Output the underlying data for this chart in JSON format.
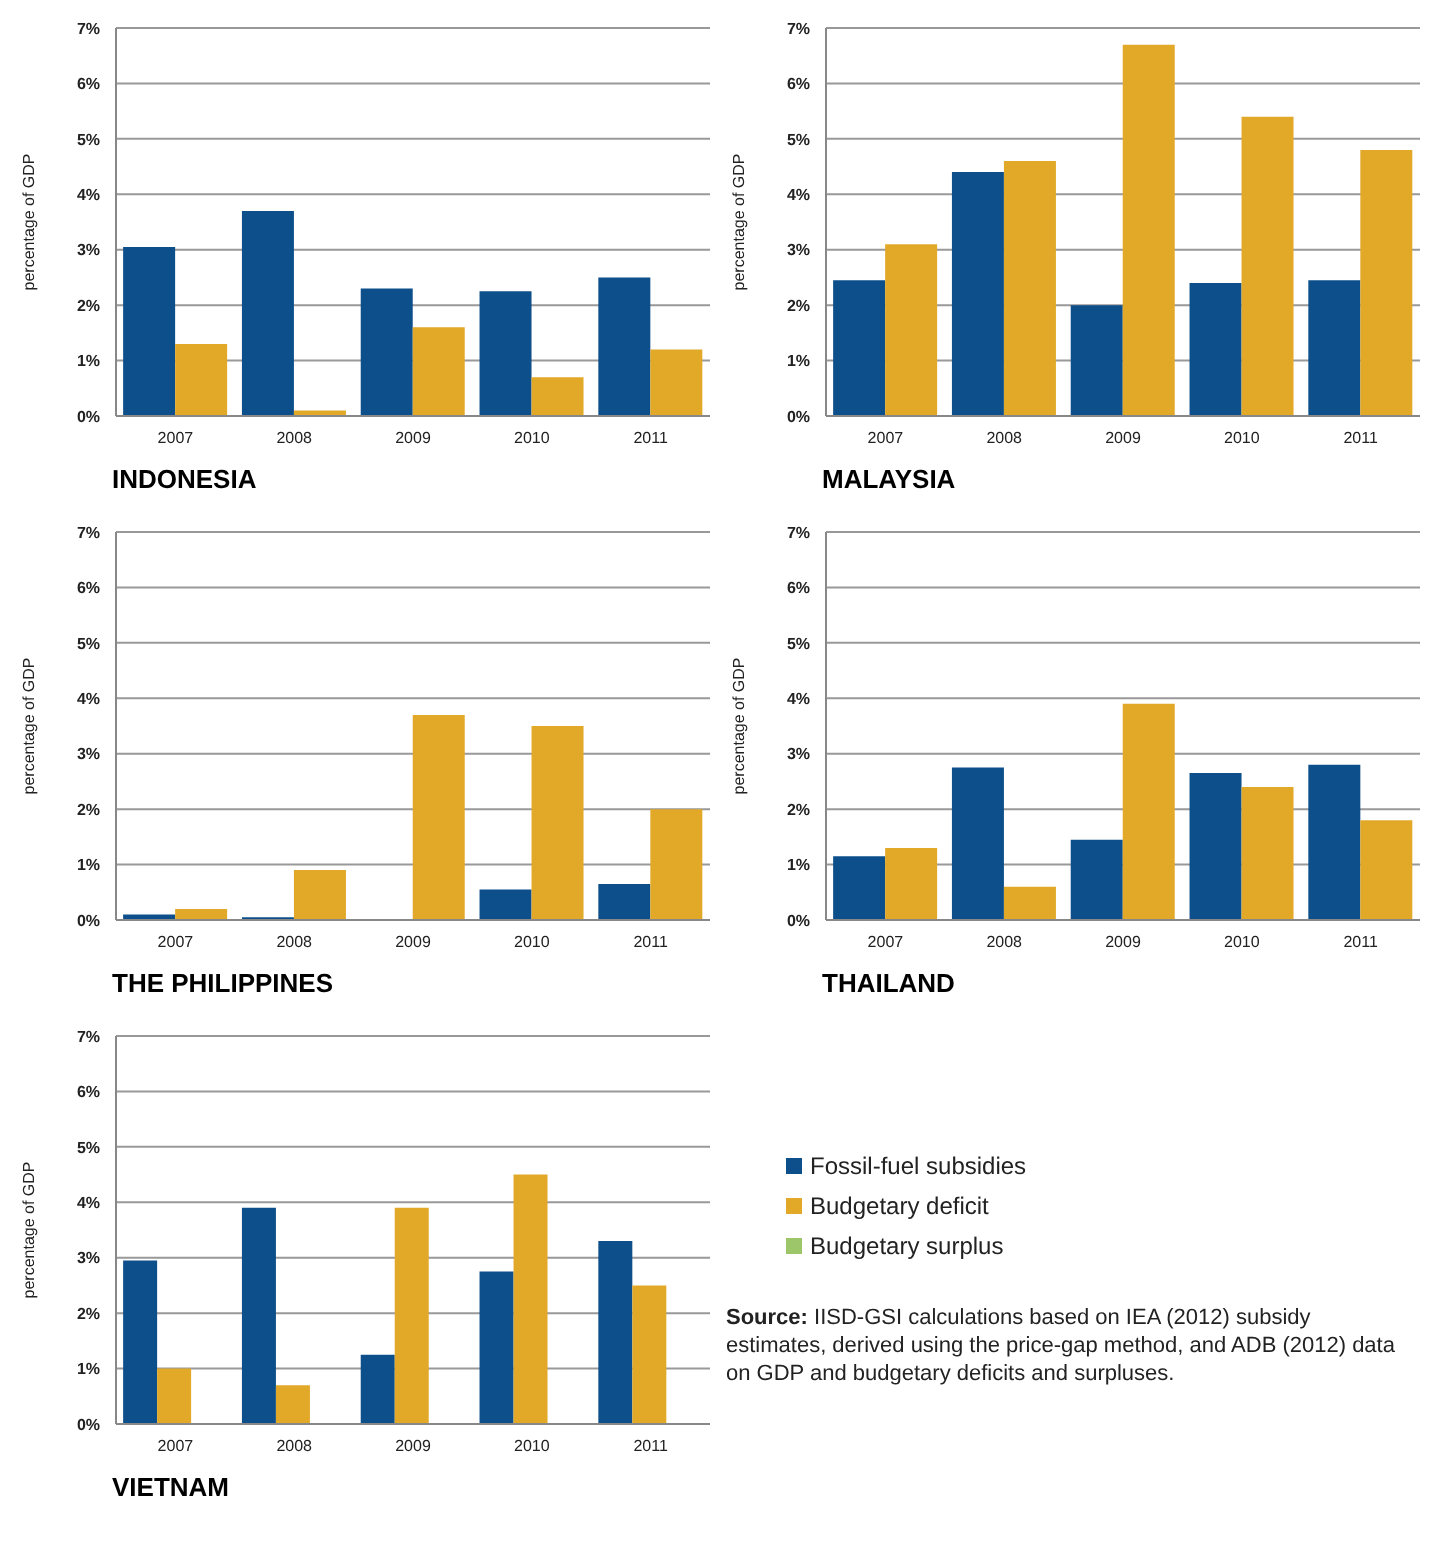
{
  "chart_data": [
    {
      "type": "bar",
      "title": "INDONESIA",
      "ylabel": "percentage of GDP",
      "categories": [
        "2007",
        "2008",
        "2009",
        "2010",
        "2011"
      ],
      "series": [
        {
          "color": "#0d4f8b",
          "values": [
            3.05,
            3.7,
            2.3,
            2.25,
            2.5
          ]
        },
        {
          "color": "#e2a928",
          "values": [
            1.3,
            0.1,
            1.6,
            0.7,
            1.2
          ]
        }
      ],
      "ylim": [
        0,
        7
      ],
      "yticks": [
        {
          "value": 0,
          "label": "0%"
        },
        {
          "value": 1,
          "label": "1%"
        },
        {
          "value": 2,
          "label": "2%"
        },
        {
          "value": 3,
          "label": "3%"
        },
        {
          "value": 4,
          "label": "4%"
        },
        {
          "value": 5,
          "label": "5%"
        },
        {
          "value": 6,
          "label": "6%"
        },
        {
          "value": 7,
          "label": "7%"
        }
      ],
      "grid": "y"
    },
    {
      "type": "bar",
      "title": "MALAYSIA",
      "ylabel": "percentage of GDP",
      "categories": [
        "2007",
        "2008",
        "2009",
        "2010",
        "2011"
      ],
      "series": [
        {
          "color": "#0d4f8b",
          "values": [
            2.45,
            4.4,
            2.0,
            2.4,
            2.45
          ]
        },
        {
          "color": "#e2a928",
          "values": [
            3.1,
            4.6,
            6.7,
            5.4,
            4.8
          ]
        }
      ],
      "ylim": [
        0,
        7
      ],
      "yticks": [
        {
          "value": 0,
          "label": "0%"
        },
        {
          "value": 1,
          "label": "1%"
        },
        {
          "value": 2,
          "label": "2%"
        },
        {
          "value": 3,
          "label": "3%"
        },
        {
          "value": 4,
          "label": "4%"
        },
        {
          "value": 5,
          "label": "5%"
        },
        {
          "value": 6,
          "label": "6%"
        },
        {
          "value": 7,
          "label": "7%"
        }
      ],
      "grid": "y"
    },
    {
      "type": "bar",
      "title": "THE PHILIPPINES",
      "ylabel": "percentage of GDP",
      "categories": [
        "2007",
        "2008",
        "2009",
        "2010",
        "2011"
      ],
      "series": [
        {
          "color": "#0d4f8b",
          "values": [
            0.1,
            0.05,
            0,
            0.55,
            0.65
          ]
        },
        {
          "color": "#e2a928",
          "values": [
            0.2,
            0.9,
            3.7,
            3.5,
            2.0
          ]
        }
      ],
      "ylim": [
        0,
        7
      ],
      "yticks": [
        {
          "value": 0,
          "label": "0%"
        },
        {
          "value": 1,
          "label": "1%"
        },
        {
          "value": 2,
          "label": "2%"
        },
        {
          "value": 3,
          "label": "3%"
        },
        {
          "value": 4,
          "label": "4%"
        },
        {
          "value": 5,
          "label": "5%"
        },
        {
          "value": 6,
          "label": "6%"
        },
        {
          "value": 7,
          "label": "7%"
        }
      ],
      "grid": "y"
    },
    {
      "type": "bar",
      "title": "THAILAND",
      "ylabel": "percentage of GDP",
      "categories": [
        "2007",
        "2008",
        "2009",
        "2010",
        "2011"
      ],
      "series": [
        {
          "color": "#0d4f8b",
          "values": [
            1.15,
            2.75,
            1.45,
            2.65,
            2.8
          ]
        },
        {
          "color": "#e2a928",
          "values": [
            1.3,
            0.6,
            3.9,
            2.4,
            1.8
          ]
        }
      ],
      "ylim": [
        0,
        7
      ],
      "yticks": [
        {
          "value": 0,
          "label": "0%"
        },
        {
          "value": 1,
          "label": "1%"
        },
        {
          "value": 2,
          "label": "2%"
        },
        {
          "value": 3,
          "label": "3%"
        },
        {
          "value": 4,
          "label": "4%"
        },
        {
          "value": 5,
          "label": "5%"
        },
        {
          "value": 6,
          "label": "6%"
        },
        {
          "value": 7,
          "label": "7%"
        }
      ],
      "grid": "y"
    },
    {
      "type": "bar",
      "title": "VIETNAM",
      "ylabel": "percentage of GDP",
      "categories": [
        "2007",
        "2008",
        "2009",
        "2010",
        "2011"
      ],
      "series": [
        {
          "name": "Fossil-fuel subsidies",
          "color": "#0d4f8b",
          "values": [
            2.95,
            3.9,
            1.25,
            2.75,
            3.3
          ]
        },
        {
          "name": "Budgetary deficit",
          "color": "#e2a928",
          "values": [
            1.0,
            0.7,
            3.9,
            4.5,
            2.5
          ]
        },
        {
          "name": "Budgetary surplus",
          "color": "#9dc56a",
          "values": [
            null,
            null,
            null,
            null,
            null
          ]
        }
      ],
      "ylim": [
        0,
        7
      ],
      "yticks": [
        {
          "value": 0,
          "label": "0%"
        },
        {
          "value": 1,
          "label": "1%"
        },
        {
          "value": 2,
          "label": "2%"
        },
        {
          "value": 3,
          "label": "3%"
        },
        {
          "value": 4,
          "label": "4%"
        },
        {
          "value": 5,
          "label": "5%"
        },
        {
          "value": 6,
          "label": "6%"
        },
        {
          "value": 7,
          "label": "7%"
        }
      ],
      "grid": "y",
      "legend": "right",
      "annotations": [
        "Source: IISD-GSI calculations based on IEA (2012) subsidy estimates, derived using the price-gap method, and ADB (2012) data on GDP and budgetary deficits and surpluses."
      ]
    }
  ]
}
